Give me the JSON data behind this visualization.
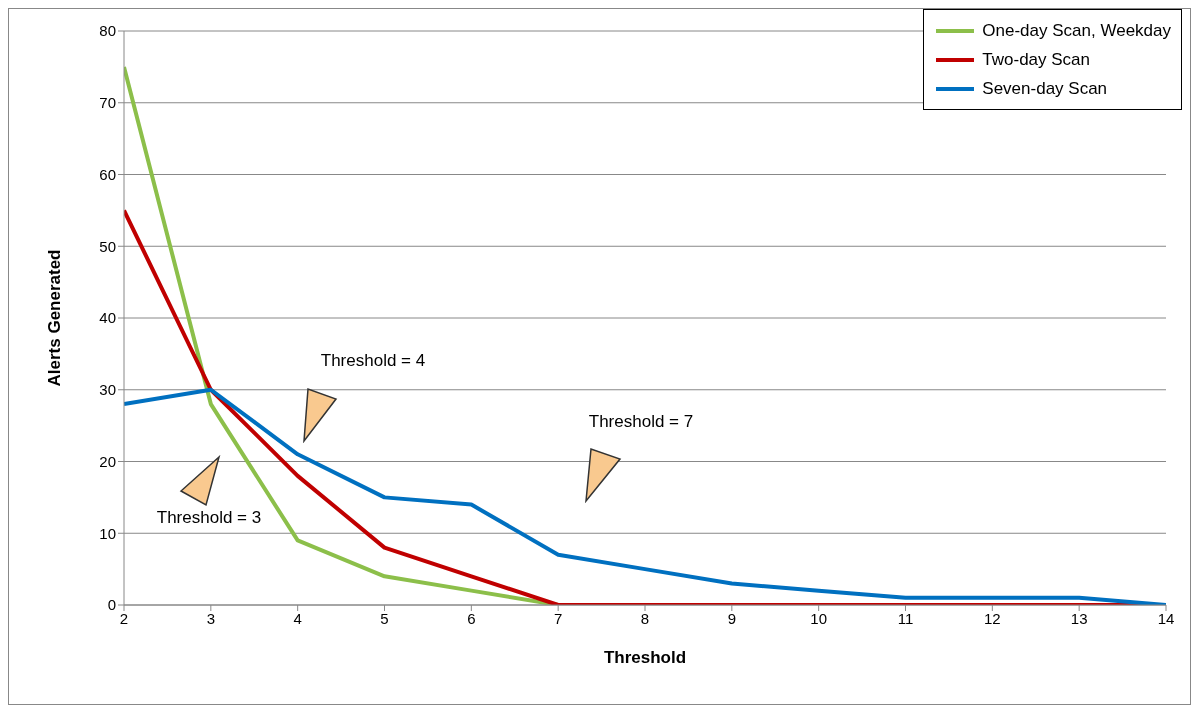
{
  "chart_data": {
    "type": "line",
    "xlabel": "Threshold",
    "ylabel": "Alerts Generated",
    "x": [
      2,
      3,
      4,
      5,
      6,
      7,
      8,
      9,
      10,
      11,
      12,
      13,
      14
    ],
    "series": [
      {
        "name": "One-day Scan, Weekday",
        "color": "#8cbf4a",
        "values": [
          75,
          28,
          9,
          4,
          2,
          0,
          null,
          null,
          null,
          null,
          null,
          null,
          null
        ]
      },
      {
        "name": "Two-day Scan",
        "color": "#c00000",
        "values": [
          55,
          30,
          18,
          8,
          4,
          0,
          0,
          0,
          0,
          0,
          0,
          0,
          0
        ]
      },
      {
        "name": "Seven-day Scan",
        "color": "#0070c0",
        "values": [
          28,
          30,
          21,
          15,
          14,
          7,
          5,
          3,
          2,
          1,
          1,
          1,
          0
        ]
      }
    ],
    "xlim": [
      2,
      14
    ],
    "xticks": [
      2,
      3,
      4,
      5,
      6,
      7,
      8,
      9,
      10,
      11,
      12,
      13,
      14
    ],
    "ylim": [
      0,
      80
    ],
    "yticks": [
      0,
      10,
      20,
      30,
      40,
      50,
      60,
      70,
      80
    ],
    "grid": "y",
    "legend": "top right",
    "marker": "none",
    "line_style": "solid",
    "annotations": [
      "Threshold = 3",
      "Threshold = 4",
      "Threshold = 7"
    ]
  }
}
